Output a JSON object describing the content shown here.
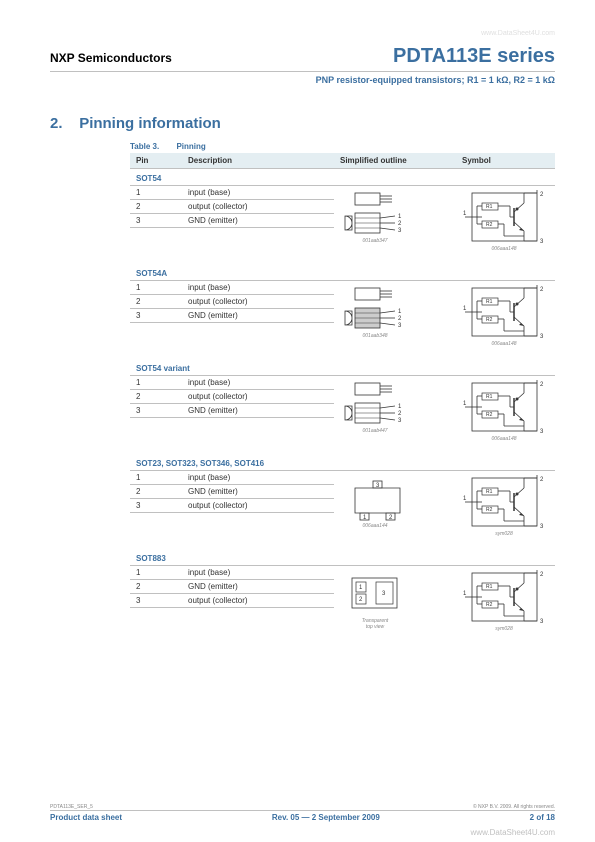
{
  "watermark_top": "www.DataSheet4U.com",
  "header": {
    "company": "NXP Semiconductors",
    "product": "PDTA113E series",
    "subtitle": "PNP resistor-equipped transistors; R1 = 1 kΩ, R2 = 1 kΩ"
  },
  "section": {
    "number": "2.",
    "title": "Pinning information"
  },
  "table": {
    "caption_num": "Table 3.",
    "caption_title": "Pinning",
    "headers": [
      "Pin",
      "Description",
      "Simplified outline",
      "Symbol"
    ]
  },
  "packages": [
    {
      "name": "SOT54",
      "pins": [
        {
          "n": "1",
          "desc": "input (base)"
        },
        {
          "n": "2",
          "desc": "output (collector)"
        },
        {
          "n": "3",
          "desc": "GND (emitter)"
        }
      ],
      "outline_type": "to92",
      "outline_label": "001aab347",
      "symbol_label": "006aaa148"
    },
    {
      "name": "SOT54A",
      "pins": [
        {
          "n": "1",
          "desc": "input (base)"
        },
        {
          "n": "2",
          "desc": "output (collector)"
        },
        {
          "n": "3",
          "desc": "GND (emitter)"
        }
      ],
      "outline_type": "to92a",
      "outline_label": "001aab348",
      "symbol_label": "006aaa148"
    },
    {
      "name": "SOT54 variant",
      "pins": [
        {
          "n": "1",
          "desc": "input (base)"
        },
        {
          "n": "2",
          "desc": "output (collector)"
        },
        {
          "n": "3",
          "desc": "GND (emitter)"
        }
      ],
      "outline_type": "to92v",
      "outline_label": "001aab447",
      "symbol_label": "006aaa148"
    },
    {
      "name": "SOT23, SOT323, SOT346, SOT416",
      "pins": [
        {
          "n": "1",
          "desc": "input (base)"
        },
        {
          "n": "2",
          "desc": "GND (emitter)"
        },
        {
          "n": "3",
          "desc": "output (collector)"
        }
      ],
      "outline_type": "sot23",
      "outline_label": "006aaa144",
      "symbol_label": "sym028"
    },
    {
      "name": "SOT883",
      "pins": [
        {
          "n": "1",
          "desc": "input (base)"
        },
        {
          "n": "2",
          "desc": "GND (emitter)"
        },
        {
          "n": "3",
          "desc": "output (collector)"
        }
      ],
      "outline_type": "sot883",
      "outline_label": "Transparent\ntop view",
      "symbol_label": "sym028"
    }
  ],
  "footer": {
    "doc_id": "PDTA113E_SER_5",
    "copyright": "© NXP B.V. 2009. All rights reserved.",
    "doc_type": "Product data sheet",
    "revision": "Rev. 05 — 2 September 2009",
    "page": "2 of 18",
    "url": "www.DataSheet4U.com"
  },
  "colors": {
    "accent": "#3b6fa0",
    "header_bg": "#e4eef2",
    "border": "#c0c0c0",
    "text": "#333333"
  }
}
